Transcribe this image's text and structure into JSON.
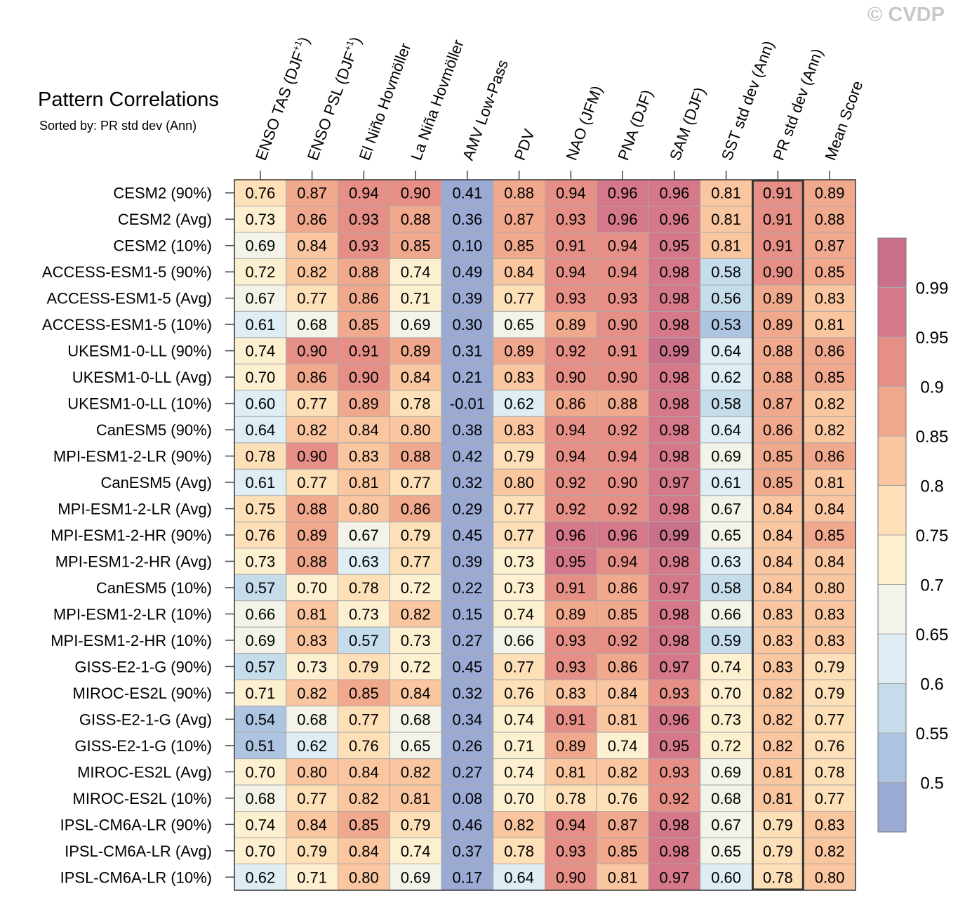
{
  "watermark": "© CVDP",
  "chart_data": {
    "type": "heatmap",
    "title": "Pattern Correlations",
    "subtitle": "Sorted by: PR std dev (Ann)",
    "highlight_column": "PR std dev (Ann)",
    "columns": [
      {
        "base": "ENSO TAS (DJF",
        "sup": "+1",
        "close": ")"
      },
      {
        "base": "ENSO PSL (DJF",
        "sup": "+1",
        "close": ")"
      },
      {
        "base": "El Niño Hovmöller"
      },
      {
        "base": "La Niña Hovmöller"
      },
      {
        "base": "AMV Low-Pass"
      },
      {
        "base": "PDV"
      },
      {
        "base": "NAO (JFM)"
      },
      {
        "base": "PNA (DJF)"
      },
      {
        "base": "SAM (DJF)"
      },
      {
        "base": "SST std dev (Ann)"
      },
      {
        "base": "PR std dev (Ann)"
      },
      {
        "base": "Mean Score"
      }
    ],
    "rows": [
      {
        "label": "CESM2 (90%)",
        "values": [
          "0.76",
          "0.87",
          "0.94",
          "0.90",
          "0.41",
          "0.88",
          "0.94",
          "0.96",
          "0.96",
          "0.81",
          "0.91",
          "0.89"
        ]
      },
      {
        "label": "CESM2 (Avg)",
        "values": [
          "0.73",
          "0.86",
          "0.93",
          "0.88",
          "0.36",
          "0.87",
          "0.93",
          "0.96",
          "0.96",
          "0.81",
          "0.91",
          "0.88"
        ]
      },
      {
        "label": "CESM2 (10%)",
        "values": [
          "0.69",
          "0.84",
          "0.93",
          "0.85",
          "0.10",
          "0.85",
          "0.91",
          "0.94",
          "0.95",
          "0.81",
          "0.91",
          "0.87"
        ]
      },
      {
        "label": "ACCESS-ESM1-5 (90%)",
        "values": [
          "0.72",
          "0.82",
          "0.88",
          "0.74",
          "0.49",
          "0.84",
          "0.94",
          "0.94",
          "0.98",
          "0.58",
          "0.90",
          "0.85"
        ]
      },
      {
        "label": "ACCESS-ESM1-5 (Avg)",
        "values": [
          "0.67",
          "0.77",
          "0.86",
          "0.71",
          "0.39",
          "0.77",
          "0.93",
          "0.93",
          "0.98",
          "0.56",
          "0.89",
          "0.83"
        ]
      },
      {
        "label": "ACCESS-ESM1-5 (10%)",
        "values": [
          "0.61",
          "0.68",
          "0.85",
          "0.69",
          "0.30",
          "0.65",
          "0.89",
          "0.90",
          "0.98",
          "0.53",
          "0.89",
          "0.81"
        ]
      },
      {
        "label": "UKESM1-0-LL (90%)",
        "values": [
          "0.74",
          "0.90",
          "0.91",
          "0.89",
          "0.31",
          "0.89",
          "0.92",
          "0.91",
          "0.99",
          "0.64",
          "0.88",
          "0.86"
        ]
      },
      {
        "label": "UKESM1-0-LL (Avg)",
        "values": [
          "0.70",
          "0.86",
          "0.90",
          "0.84",
          "0.21",
          "0.83",
          "0.90",
          "0.90",
          "0.98",
          "0.62",
          "0.88",
          "0.85"
        ]
      },
      {
        "label": "UKESM1-0-LL (10%)",
        "values": [
          "0.60",
          "0.77",
          "0.89",
          "0.78",
          "-0.01",
          "0.62",
          "0.86",
          "0.88",
          "0.98",
          "0.58",
          "0.87",
          "0.82"
        ]
      },
      {
        "label": "CanESM5 (90%)",
        "values": [
          "0.64",
          "0.82",
          "0.84",
          "0.80",
          "0.38",
          "0.83",
          "0.94",
          "0.92",
          "0.98",
          "0.64",
          "0.86",
          "0.82"
        ]
      },
      {
        "label": "MPI-ESM1-2-LR (90%)",
        "values": [
          "0.78",
          "0.90",
          "0.83",
          "0.88",
          "0.42",
          "0.79",
          "0.94",
          "0.94",
          "0.98",
          "0.69",
          "0.85",
          "0.86"
        ]
      },
      {
        "label": "CanESM5 (Avg)",
        "values": [
          "0.61",
          "0.77",
          "0.81",
          "0.77",
          "0.32",
          "0.80",
          "0.92",
          "0.90",
          "0.97",
          "0.61",
          "0.85",
          "0.81"
        ]
      },
      {
        "label": "MPI-ESM1-2-LR (Avg)",
        "values": [
          "0.75",
          "0.88",
          "0.80",
          "0.86",
          "0.29",
          "0.77",
          "0.92",
          "0.92",
          "0.98",
          "0.67",
          "0.84",
          "0.84"
        ]
      },
      {
        "label": "MPI-ESM1-2-HR (90%)",
        "values": [
          "0.76",
          "0.89",
          "0.67",
          "0.79",
          "0.45",
          "0.77",
          "0.96",
          "0.96",
          "0.99",
          "0.65",
          "0.84",
          "0.85"
        ]
      },
      {
        "label": "MPI-ESM1-2-HR (Avg)",
        "values": [
          "0.73",
          "0.88",
          "0.63",
          "0.77",
          "0.39",
          "0.73",
          "0.95",
          "0.94",
          "0.98",
          "0.63",
          "0.84",
          "0.84"
        ]
      },
      {
        "label": "CanESM5 (10%)",
        "values": [
          "0.57",
          "0.70",
          "0.78",
          "0.72",
          "0.22",
          "0.73",
          "0.91",
          "0.86",
          "0.97",
          "0.58",
          "0.84",
          "0.80"
        ]
      },
      {
        "label": "MPI-ESM1-2-LR (10%)",
        "values": [
          "0.66",
          "0.81",
          "0.73",
          "0.82",
          "0.15",
          "0.74",
          "0.89",
          "0.85",
          "0.98",
          "0.66",
          "0.83",
          "0.83"
        ]
      },
      {
        "label": "MPI-ESM1-2-HR (10%)",
        "values": [
          "0.69",
          "0.83",
          "0.57",
          "0.73",
          "0.27",
          "0.66",
          "0.93",
          "0.92",
          "0.98",
          "0.59",
          "0.83",
          "0.83"
        ]
      },
      {
        "label": "GISS-E2-1-G (90%)",
        "values": [
          "0.57",
          "0.73",
          "0.79",
          "0.72",
          "0.45",
          "0.77",
          "0.93",
          "0.86",
          "0.97",
          "0.74",
          "0.83",
          "0.79"
        ]
      },
      {
        "label": "MIROC-ES2L (90%)",
        "values": [
          "0.71",
          "0.82",
          "0.85",
          "0.84",
          "0.32",
          "0.76",
          "0.83",
          "0.84",
          "0.93",
          "0.70",
          "0.82",
          "0.79"
        ]
      },
      {
        "label": "GISS-E2-1-G (Avg)",
        "values": [
          "0.54",
          "0.68",
          "0.77",
          "0.68",
          "0.34",
          "0.74",
          "0.91",
          "0.81",
          "0.96",
          "0.73",
          "0.82",
          "0.77"
        ]
      },
      {
        "label": "GISS-E2-1-G (10%)",
        "values": [
          "0.51",
          "0.62",
          "0.76",
          "0.65",
          "0.26",
          "0.71",
          "0.89",
          "0.74",
          "0.95",
          "0.72",
          "0.82",
          "0.76"
        ]
      },
      {
        "label": "MIROC-ES2L (Avg)",
        "values": [
          "0.70",
          "0.80",
          "0.84",
          "0.82",
          "0.27",
          "0.74",
          "0.81",
          "0.82",
          "0.93",
          "0.69",
          "0.81",
          "0.78"
        ]
      },
      {
        "label": "MIROC-ES2L (10%)",
        "values": [
          "0.68",
          "0.77",
          "0.82",
          "0.81",
          "0.08",
          "0.70",
          "0.78",
          "0.76",
          "0.92",
          "0.68",
          "0.81",
          "0.77"
        ]
      },
      {
        "label": "IPSL-CM6A-LR (90%)",
        "values": [
          "0.74",
          "0.84",
          "0.85",
          "0.79",
          "0.46",
          "0.82",
          "0.94",
          "0.87",
          "0.98",
          "0.67",
          "0.79",
          "0.83"
        ]
      },
      {
        "label": "IPSL-CM6A-LR (Avg)",
        "values": [
          "0.70",
          "0.79",
          "0.84",
          "0.74",
          "0.37",
          "0.78",
          "0.93",
          "0.85",
          "0.98",
          "0.65",
          "0.79",
          "0.82"
        ]
      },
      {
        "label": "IPSL-CM6A-LR (10%)",
        "values": [
          "0.62",
          "0.71",
          "0.80",
          "0.69",
          "0.17",
          "0.64",
          "0.90",
          "0.81",
          "0.97",
          "0.60",
          "0.78",
          "0.80"
        ]
      }
    ],
    "colorbar": {
      "levels": [
        "0.5",
        "0.55",
        "0.6",
        "0.65",
        "0.7",
        "0.75",
        "0.8",
        "0.85",
        "0.9",
        "0.95",
        "0.99"
      ],
      "thresholds": [
        0.5,
        0.55,
        0.6,
        0.65,
        0.7,
        0.75,
        0.8,
        0.85,
        0.9,
        0.95,
        0.99
      ],
      "colors": [
        "#9aaad2",
        "#aec5e1",
        "#c5dcea",
        "#deeef4",
        "#f3f3ea",
        "#fdf0d0",
        "#fde0b8",
        "#f9c6a0",
        "#f1a98e",
        "#e68f86",
        "#d4788a",
        "#c9708a"
      ]
    }
  }
}
